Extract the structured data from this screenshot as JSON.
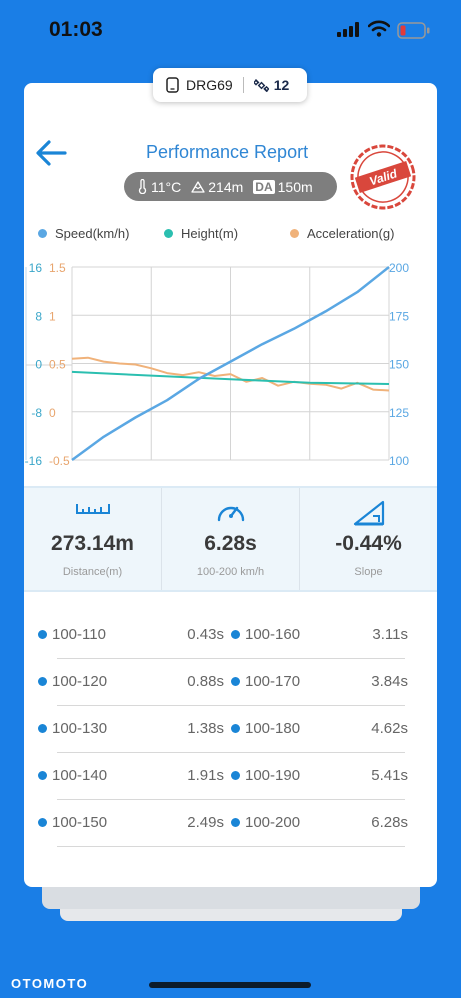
{
  "status_bar": {
    "time": "01:03"
  },
  "device": {
    "name": "DRG69",
    "satellites": "12"
  },
  "header": {
    "title": "Performance Report",
    "stamp": "Valid"
  },
  "conditions": {
    "temperature": "11°C",
    "altitude": "214m",
    "da_label": "DA",
    "density_altitude": "150m"
  },
  "legend": {
    "speed": "Speed(km/h)",
    "height": "Height(m)",
    "acceleration": "Acceleration(g)"
  },
  "colors": {
    "speed": "#5aa7e3",
    "height": "#2bbfb0",
    "acceleration": "#f0b27a",
    "accent": "#1a85d6"
  },
  "chart_data": {
    "type": "line",
    "left_axis_height": {
      "ticks": [
        "16",
        "8",
        "0",
        "-8",
        "-16"
      ],
      "ylim": [
        -16,
        16
      ]
    },
    "left_axis_accel": {
      "ticks": [
        "1.5",
        "1",
        "0.5",
        "0",
        "-0.5"
      ],
      "ylim": [
        -0.5,
        1.5
      ]
    },
    "right_axis_speed": {
      "ticks": [
        "200",
        "175",
        "150",
        "125",
        "100"
      ],
      "ylim": [
        100,
        200
      ]
    },
    "series": [
      {
        "name": "Speed(km/h)",
        "axis": "speed",
        "x": [
          0,
          0.05,
          0.1,
          0.2,
          0.3,
          0.4,
          0.5,
          0.6,
          0.7,
          0.8,
          0.9,
          1.0
        ],
        "values": [
          100,
          106,
          112,
          122,
          131,
          142,
          151,
          160,
          168,
          177,
          187,
          200
        ]
      },
      {
        "name": "Height(m)",
        "axis": "height",
        "x": [
          0,
          0.25,
          0.5,
          0.75,
          1.0
        ],
        "values": [
          -1.4,
          -2.0,
          -2.6,
          -3.2,
          -3.4
        ]
      },
      {
        "name": "Acceleration(g)",
        "axis": "accel",
        "x": [
          0,
          0.05,
          0.1,
          0.15,
          0.2,
          0.25,
          0.3,
          0.35,
          0.4,
          0.45,
          0.5,
          0.55,
          0.6,
          0.65,
          0.7,
          0.75,
          0.8,
          0.85,
          0.9,
          0.95,
          1.0
        ],
        "values": [
          0.55,
          0.56,
          0.52,
          0.5,
          0.49,
          0.45,
          0.4,
          0.38,
          0.41,
          0.37,
          0.39,
          0.31,
          0.35,
          0.27,
          0.31,
          0.29,
          0.28,
          0.24,
          0.3,
          0.23,
          0.22
        ]
      }
    ]
  },
  "stats": [
    {
      "value": "273.14m",
      "label": "Distance(m)",
      "icon": "ruler-icon"
    },
    {
      "value": "6.28s",
      "label": "100-200 km/h",
      "icon": "speedometer-icon"
    },
    {
      "value": "-0.44%",
      "label": "Slope",
      "icon": "slope-icon"
    }
  ],
  "splits": [
    {
      "left_range": "100-110",
      "left_time": "0.43s",
      "right_range": "100-160",
      "right_time": "3.11s"
    },
    {
      "left_range": "100-120",
      "left_time": "0.88s",
      "right_range": "100-170",
      "right_time": "3.84s"
    },
    {
      "left_range": "100-130",
      "left_time": "1.38s",
      "right_range": "100-180",
      "right_time": "4.62s"
    },
    {
      "left_range": "100-140",
      "left_time": "1.91s",
      "right_range": "100-190",
      "right_time": "5.41s"
    },
    {
      "left_range": "100-150",
      "left_time": "2.49s",
      "right_range": "100-200",
      "right_time": "6.28s"
    }
  ],
  "footer": {
    "brand": "OTOMOTO"
  }
}
